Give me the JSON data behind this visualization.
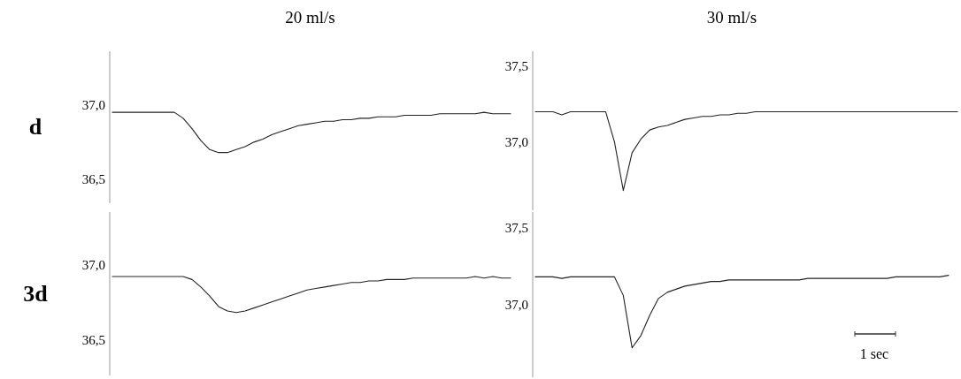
{
  "chart_data": [
    {
      "type": "line",
      "title": "20 ml/s",
      "annotations": [
        "d"
      ],
      "categories": [
        null,
        null,
        null,
        null,
        null,
        null,
        null,
        null,
        null,
        null,
        null,
        null,
        null,
        null,
        null,
        null,
        null,
        null,
        null,
        null,
        null,
        null,
        null,
        null,
        null,
        null,
        null,
        null,
        null,
        null,
        null,
        null,
        null,
        null,
        null,
        null,
        null,
        null,
        null,
        null,
        null,
        null,
        null,
        null,
        null,
        null
      ],
      "series": [
        {
          "color": "#222222",
          "values": [
            36.95,
            36.95,
            36.95,
            36.95,
            36.95,
            36.95,
            36.95,
            36.95,
            36.91,
            36.84,
            36.76,
            36.7,
            36.68,
            36.68,
            36.7,
            36.72,
            36.75,
            36.77,
            36.8,
            36.82,
            36.84,
            36.86,
            36.87,
            36.88,
            36.89,
            36.89,
            36.9,
            36.9,
            36.91,
            36.91,
            36.92,
            36.92,
            36.92,
            36.93,
            36.93,
            36.93,
            36.93,
            36.94,
            36.94,
            36.94,
            36.94,
            36.94,
            36.95,
            36.94,
            36.94,
            36.94
          ]
        }
      ],
      "ylim": [
        36.34,
        37.36
      ],
      "yticks": [
        {
          "value": 37.0,
          "label": "37,0"
        },
        {
          "value": 36.5,
          "label": "36,5"
        }
      ],
      "tick_labels": "y",
      "grid": false,
      "marker": "none",
      "line_style": "solid"
    },
    {
      "type": "line",
      "title": "30 ml/s",
      "categories": [
        null,
        null,
        null,
        null,
        null,
        null,
        null,
        null,
        null,
        null,
        null,
        null,
        null,
        null,
        null,
        null,
        null,
        null,
        null,
        null,
        null,
        null,
        null,
        null,
        null,
        null,
        null,
        null,
        null,
        null,
        null,
        null,
        null,
        null,
        null,
        null,
        null,
        null,
        null,
        null,
        null,
        null,
        null,
        null,
        null,
        null,
        null,
        null,
        null
      ],
      "series": [
        {
          "color": "#222222",
          "values": [
            37.2,
            37.2,
            37.2,
            37.18,
            37.2,
            37.2,
            37.2,
            37.2,
            37.2,
            37.0,
            36.68,
            36.93,
            37.02,
            37.08,
            37.1,
            37.11,
            37.13,
            37.15,
            37.16,
            37.17,
            37.17,
            37.18,
            37.18,
            37.19,
            37.19,
            37.2,
            37.2,
            37.2,
            37.2,
            37.2,
            37.2,
            37.2,
            37.2,
            37.2,
            37.2,
            37.2,
            37.2,
            37.2,
            37.2,
            37.2,
            37.2,
            37.2,
            37.2,
            37.2,
            37.2,
            37.2,
            37.2,
            37.2,
            37.2
          ]
        }
      ],
      "ylim": [
        36.55,
        37.6
      ],
      "yticks": [
        {
          "value": 37.5,
          "label": "37,5"
        },
        {
          "value": 37.0,
          "label": "37,0"
        }
      ],
      "tick_labels": "y",
      "grid": false,
      "marker": "none",
      "line_style": "solid"
    },
    {
      "type": "line",
      "annotations": [
        "3d"
      ],
      "categories": [
        null,
        null,
        null,
        null,
        null,
        null,
        null,
        null,
        null,
        null,
        null,
        null,
        null,
        null,
        null,
        null,
        null,
        null,
        null,
        null,
        null,
        null,
        null,
        null,
        null,
        null,
        null,
        null,
        null,
        null,
        null,
        null,
        null,
        null,
        null,
        null,
        null,
        null,
        null,
        null,
        null,
        null,
        null,
        null,
        null,
        null
      ],
      "series": [
        {
          "color": "#222222",
          "values": [
            36.92,
            36.92,
            36.92,
            36.92,
            36.92,
            36.92,
            36.92,
            36.92,
            36.92,
            36.9,
            36.85,
            36.79,
            36.72,
            36.69,
            36.68,
            36.69,
            36.71,
            36.73,
            36.75,
            36.77,
            36.79,
            36.81,
            36.83,
            36.84,
            36.85,
            36.86,
            36.87,
            36.88,
            36.88,
            36.89,
            36.89,
            36.9,
            36.9,
            36.9,
            36.91,
            36.91,
            36.91,
            36.91,
            36.91,
            36.91,
            36.91,
            36.92,
            36.91,
            36.92,
            36.91,
            36.91
          ]
        }
      ],
      "ylim": [
        36.26,
        37.35
      ],
      "yticks": [
        {
          "value": 37.0,
          "label": "37,0"
        },
        {
          "value": 36.5,
          "label": "36,5"
        }
      ],
      "tick_labels": "y",
      "grid": false,
      "marker": "none",
      "line_style": "solid"
    },
    {
      "type": "line",
      "annotations": [
        "1 sec"
      ],
      "categories": [
        null,
        null,
        null,
        null,
        null,
        null,
        null,
        null,
        null,
        null,
        null,
        null,
        null,
        null,
        null,
        null,
        null,
        null,
        null,
        null,
        null,
        null,
        null,
        null,
        null,
        null,
        null,
        null,
        null,
        null,
        null,
        null,
        null,
        null,
        null,
        null,
        null,
        null,
        null,
        null,
        null,
        null,
        null,
        null,
        null,
        null,
        null,
        null
      ],
      "series": [
        {
          "color": "#222222",
          "values": [
            37.18,
            37.18,
            37.18,
            37.17,
            37.18,
            37.18,
            37.18,
            37.18,
            37.18,
            37.18,
            37.06,
            36.72,
            36.8,
            36.93,
            37.04,
            37.08,
            37.1,
            37.12,
            37.13,
            37.14,
            37.15,
            37.15,
            37.16,
            37.16,
            37.16,
            37.16,
            37.16,
            37.16,
            37.16,
            37.16,
            37.16,
            37.17,
            37.17,
            37.17,
            37.17,
            37.17,
            37.17,
            37.17,
            37.17,
            37.17,
            37.17,
            37.18,
            37.18,
            37.18,
            37.18,
            37.18,
            37.18,
            37.19
          ]
        }
      ],
      "ylim": [
        36.53,
        37.6
      ],
      "yticks": [
        {
          "value": 37.5,
          "label": "37,5"
        },
        {
          "value": 37.0,
          "label": "37,0"
        }
      ],
      "tick_labels": "y",
      "grid": false,
      "marker": "none",
      "line_style": "solid"
    }
  ]
}
